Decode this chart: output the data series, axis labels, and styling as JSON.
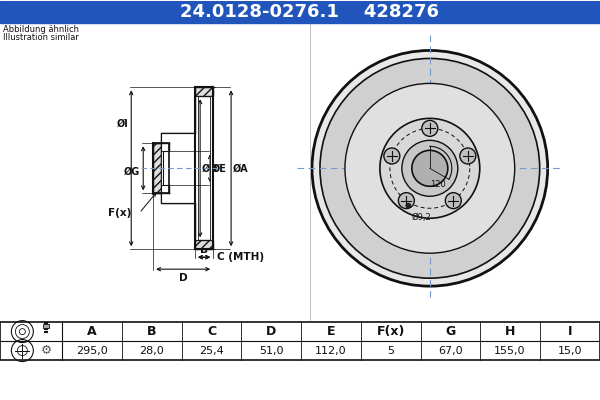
{
  "title_part": "24.0128-0276.1",
  "title_code": "428276",
  "subtitle1": "Abbildung ähnlich",
  "subtitle2": "Illustration similar",
  "header_bg": "#2255bb",
  "header_text_color": "#ffffff",
  "body_bg": "#ffffff",
  "table_headers": [
    "A",
    "B",
    "C",
    "D",
    "E",
    "F(x)",
    "G",
    "H",
    "I"
  ],
  "table_values": [
    "295,0",
    "28,0",
    "25,4",
    "51,0",
    "112,0",
    "5",
    "67,0",
    "155,0",
    "15,0"
  ],
  "angle_label": "120",
  "hole_diam_label": "Ø9,2",
  "crosshair_color": "#7799cc",
  "line_color": "#111111",
  "hatch_color": "#333333"
}
